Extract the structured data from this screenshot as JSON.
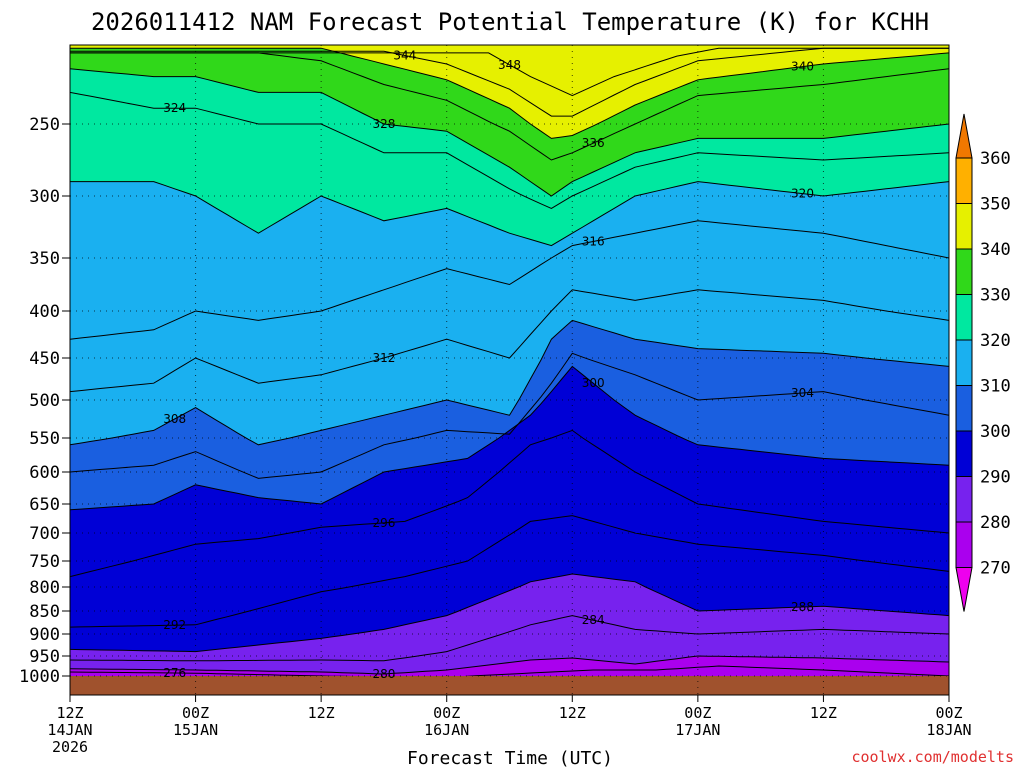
{
  "chart_data": {
    "type": "heatmap",
    "title": "2026011412 NAM Forecast Potential Temperature (K) for KCHH",
    "xlabel": "Forecast Time (UTC)",
    "ylabel": "",
    "credit": "coolwx.com/modelts",
    "x_ticks": [
      {
        "hours": 0,
        "line1": "12Z",
        "line2": "14JAN",
        "line3": "2026"
      },
      {
        "hours": 12,
        "line1": "00Z",
        "line2": "15JAN",
        "line3": ""
      },
      {
        "hours": 24,
        "line1": "12Z",
        "line2": "",
        "line3": ""
      },
      {
        "hours": 36,
        "line1": "00Z",
        "line2": "16JAN",
        "line3": ""
      },
      {
        "hours": 48,
        "line1": "12Z",
        "line2": "",
        "line3": ""
      },
      {
        "hours": 60,
        "line1": "00Z",
        "line2": "17JAN",
        "line3": ""
      },
      {
        "hours": 72,
        "line1": "12Z",
        "line2": "",
        "line3": ""
      },
      {
        "hours": 84,
        "line1": "00Z",
        "line2": "18JAN",
        "line3": ""
      }
    ],
    "y_ticks": [
      "250",
      "300",
      "350",
      "400",
      "450",
      "500",
      "550",
      "600",
      "650",
      "700",
      "750",
      "800",
      "850",
      "900",
      "950",
      "1000"
    ],
    "y_range_hpa": [
      200,
      1030
    ],
    "x_range_hours": [
      0,
      84
    ],
    "colorbar": {
      "labels": [
        "270",
        "280",
        "290",
        "300",
        "310",
        "320",
        "330",
        "340",
        "350",
        "360"
      ],
      "colors": [
        "#ee00ee",
        "#aa00ee",
        "#7722ee",
        "#0000d6",
        "#1a5fe0",
        "#1ab0f0",
        "#00e8a0",
        "#30d81a",
        "#e6f000",
        "#ffb000",
        "#f07800"
      ]
    },
    "isentropes_K": [
      {
        "value": 276,
        "pts": [
          [
            0,
            990
          ],
          [
            12,
            993
          ],
          [
            24,
            1000
          ],
          [
            36,
            1003
          ],
          [
            46,
            990
          ],
          [
            50,
            985
          ],
          [
            56,
            985
          ],
          [
            62,
            975
          ],
          [
            72,
            985
          ],
          [
            84,
            1000
          ]
        ]
      },
      {
        "value": 280,
        "pts": [
          [
            0,
            982
          ],
          [
            12,
            985
          ],
          [
            24,
            990
          ],
          [
            30,
            995
          ],
          [
            36,
            985
          ],
          [
            44,
            960
          ],
          [
            48,
            955
          ],
          [
            54,
            970
          ],
          [
            60,
            950
          ],
          [
            72,
            955
          ],
          [
            84,
            965
          ]
        ]
      },
      {
        "value": 284,
        "pts": [
          [
            0,
            960
          ],
          [
            12,
            962
          ],
          [
            24,
            960
          ],
          [
            30,
            962
          ],
          [
            36,
            940
          ],
          [
            44,
            880
          ],
          [
            48,
            860
          ],
          [
            54,
            890
          ],
          [
            60,
            900
          ],
          [
            72,
            890
          ],
          [
            84,
            900
          ]
        ]
      },
      {
        "value": 288,
        "pts": [
          [
            0,
            935
          ],
          [
            12,
            940
          ],
          [
            24,
            910
          ],
          [
            30,
            890
          ],
          [
            36,
            860
          ],
          [
            44,
            790
          ],
          [
            48,
            775
          ],
          [
            54,
            790
          ],
          [
            60,
            850
          ],
          [
            72,
            840
          ],
          [
            84,
            860
          ]
        ]
      },
      {
        "value": 292,
        "pts": [
          [
            0,
            885
          ],
          [
            12,
            880
          ],
          [
            24,
            810
          ],
          [
            32,
            780
          ],
          [
            38,
            750
          ],
          [
            44,
            680
          ],
          [
            48,
            670
          ],
          [
            54,
            700
          ],
          [
            60,
            720
          ],
          [
            72,
            740
          ],
          [
            84,
            770
          ]
        ]
      },
      {
        "value": 296,
        "pts": [
          [
            0,
            780
          ],
          [
            8,
            740
          ],
          [
            12,
            720
          ],
          [
            18,
            710
          ],
          [
            24,
            690
          ],
          [
            32,
            680
          ],
          [
            38,
            640
          ],
          [
            44,
            560
          ],
          [
            48,
            540
          ],
          [
            54,
            600
          ],
          [
            60,
            650
          ],
          [
            72,
            680
          ],
          [
            84,
            700
          ]
        ]
      },
      {
        "value": 300,
        "pts": [
          [
            0,
            660
          ],
          [
            8,
            650
          ],
          [
            12,
            620
          ],
          [
            18,
            640
          ],
          [
            24,
            650
          ],
          [
            30,
            600
          ],
          [
            38,
            580
          ],
          [
            44,
            520
          ],
          [
            48,
            460
          ],
          [
            54,
            520
          ],
          [
            60,
            560
          ],
          [
            72,
            580
          ],
          [
            84,
            590
          ]
        ]
      },
      {
        "value": 304,
        "pts": [
          [
            0,
            600
          ],
          [
            8,
            590
          ],
          [
            12,
            570
          ],
          [
            18,
            610
          ],
          [
            24,
            600
          ],
          [
            30,
            560
          ],
          [
            36,
            540
          ],
          [
            42,
            545
          ],
          [
            46,
            480
          ],
          [
            48,
            445
          ],
          [
            54,
            470
          ],
          [
            60,
            500
          ],
          [
            72,
            490
          ],
          [
            84,
            520
          ]
        ]
      },
      {
        "value": 308,
        "pts": [
          [
            0,
            560
          ],
          [
            8,
            540
          ],
          [
            12,
            510
          ],
          [
            18,
            560
          ],
          [
            24,
            540
          ],
          [
            30,
            520
          ],
          [
            36,
            500
          ],
          [
            42,
            520
          ],
          [
            46,
            430
          ],
          [
            48,
            410
          ],
          [
            54,
            430
          ],
          [
            60,
            440
          ],
          [
            72,
            445
          ],
          [
            84,
            460
          ]
        ]
      },
      {
        "value": 312,
        "pts": [
          [
            0,
            490
          ],
          [
            8,
            480
          ],
          [
            12,
            450
          ],
          [
            18,
            480
          ],
          [
            24,
            470
          ],
          [
            30,
            450
          ],
          [
            36,
            430
          ],
          [
            42,
            450
          ],
          [
            46,
            400
          ],
          [
            48,
            380
          ],
          [
            54,
            390
          ],
          [
            60,
            380
          ],
          [
            72,
            390
          ],
          [
            84,
            410
          ]
        ]
      },
      {
        "value": 316,
        "pts": [
          [
            0,
            430
          ],
          [
            8,
            420
          ],
          [
            12,
            400
          ],
          [
            18,
            410
          ],
          [
            24,
            400
          ],
          [
            30,
            380
          ],
          [
            36,
            360
          ],
          [
            42,
            375
          ],
          [
            46,
            350
          ],
          [
            48,
            340
          ],
          [
            54,
            330
          ],
          [
            60,
            320
          ],
          [
            72,
            330
          ],
          [
            84,
            350
          ]
        ]
      },
      {
        "value": 320,
        "pts": [
          [
            0,
            290
          ],
          [
            8,
            290
          ],
          [
            12,
            300
          ],
          [
            18,
            330
          ],
          [
            24,
            300
          ],
          [
            30,
            320
          ],
          [
            36,
            310
          ],
          [
            42,
            330
          ],
          [
            46,
            340
          ],
          [
            48,
            330
          ],
          [
            54,
            300
          ],
          [
            60,
            290
          ],
          [
            72,
            300
          ],
          [
            84,
            290
          ]
        ]
      },
      {
        "value": 324,
        "pts": [
          [
            0,
            230
          ],
          [
            8,
            240
          ],
          [
            12,
            240
          ],
          [
            18,
            250
          ],
          [
            24,
            250
          ],
          [
            30,
            270
          ],
          [
            36,
            270
          ],
          [
            42,
            295
          ],
          [
            46,
            310
          ],
          [
            48,
            300
          ],
          [
            54,
            280
          ],
          [
            60,
            270
          ],
          [
            72,
            275
          ],
          [
            84,
            270
          ]
        ]
      },
      {
        "value": 328,
        "pts": [
          [
            0,
            215
          ],
          [
            8,
            220
          ],
          [
            12,
            220
          ],
          [
            18,
            230
          ],
          [
            24,
            230
          ],
          [
            30,
            250
          ],
          [
            36,
            255
          ],
          [
            42,
            280
          ],
          [
            46,
            300
          ],
          [
            48,
            290
          ],
          [
            54,
            270
          ],
          [
            60,
            260
          ],
          [
            72,
            260
          ],
          [
            84,
            250
          ]
        ]
      },
      {
        "value": 336,
        "pts": [
          [
            18,
            205
          ],
          [
            24,
            210
          ],
          [
            30,
            225
          ],
          [
            36,
            235
          ],
          [
            42,
            255
          ],
          [
            46,
            275
          ],
          [
            48,
            270
          ],
          [
            54,
            250
          ],
          [
            60,
            232
          ],
          [
            72,
            225
          ],
          [
            84,
            215
          ]
        ]
      },
      {
        "value": 340,
        "pts": [
          [
            24,
            202
          ],
          [
            30,
            212
          ],
          [
            36,
            222
          ],
          [
            42,
            240
          ],
          [
            46,
            260
          ],
          [
            48,
            258
          ],
          [
            54,
            238
          ],
          [
            60,
            222
          ],
          [
            72,
            212
          ],
          [
            84,
            205
          ]
        ]
      },
      {
        "value": 344,
        "pts": [
          [
            30,
            204
          ],
          [
            36,
            212
          ],
          [
            42,
            228
          ],
          [
            46,
            245
          ],
          [
            48,
            245
          ],
          [
            54,
            225
          ],
          [
            60,
            210
          ],
          [
            72,
            202
          ]
        ]
      },
      {
        "value": 348,
        "pts": [
          [
            40,
            205
          ],
          [
            44,
            220
          ],
          [
            48,
            232
          ],
          [
            52,
            220
          ],
          [
            58,
            207
          ],
          [
            62,
            202
          ]
        ]
      }
    ]
  }
}
